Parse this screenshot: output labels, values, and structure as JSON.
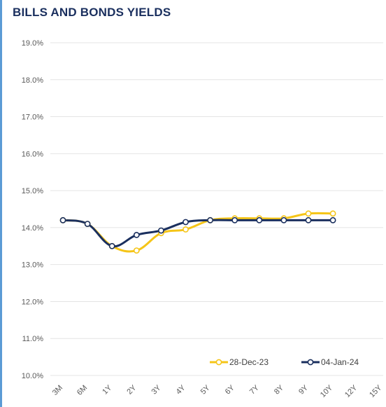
{
  "chart_data": {
    "type": "line",
    "title": "BILLS AND BONDS YIELDS",
    "categories": [
      "3M",
      "6M",
      "1Y",
      "2Y",
      "3Y",
      "4Y",
      "5Y",
      "6Y",
      "7Y",
      "8Y",
      "9Y",
      "10Y",
      "12Y",
      "15Y"
    ],
    "y_ticks": [
      "10.0%",
      "11.0%",
      "12.0%",
      "13.0%",
      "14.0%",
      "15.0%",
      "16.0%",
      "17.0%",
      "18.0%",
      "19.0%"
    ],
    "ylim": [
      10,
      19
    ],
    "grid": true,
    "legend_position": "bottom-right",
    "series": [
      {
        "name": "28-Dec-23",
        "color": "#f5c518",
        "values": [
          14.2,
          14.1,
          13.5,
          13.38,
          13.85,
          13.95,
          14.2,
          14.25,
          14.25,
          14.25,
          14.38,
          14.38,
          null,
          null
        ]
      },
      {
        "name": "04-Jan-24",
        "color": "#1a2f5e",
        "values": [
          14.2,
          14.1,
          13.5,
          13.8,
          13.92,
          14.15,
          14.2,
          14.2,
          14.2,
          14.2,
          14.2,
          14.2,
          null,
          null
        ]
      }
    ]
  }
}
